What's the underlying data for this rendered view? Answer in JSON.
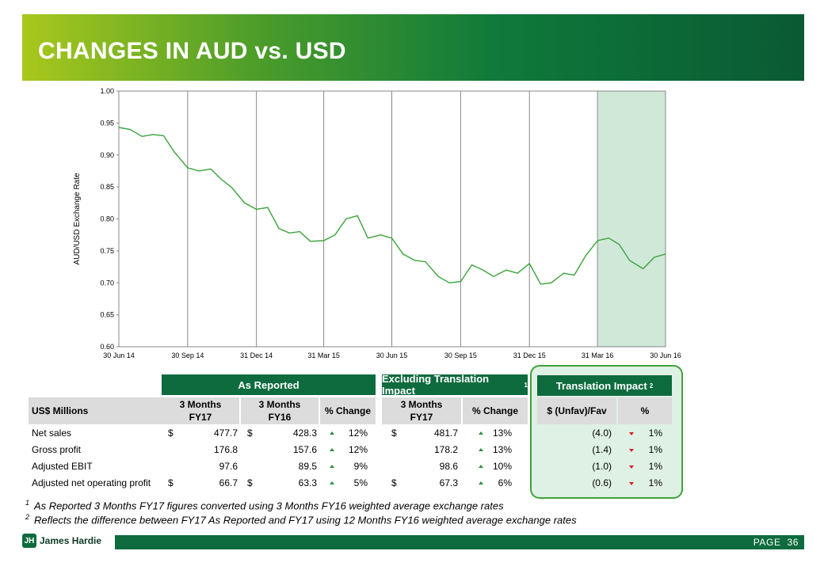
{
  "header": {
    "title": "CHANGES IN AUD vs. USD"
  },
  "chart_data": {
    "type": "line",
    "ylabel": "AUD/USD Exchange Rate",
    "ylim": [
      0.6,
      1.0
    ],
    "yticks": [
      "0.60",
      "0.65",
      "0.70",
      "0.75",
      "0.80",
      "0.85",
      "0.90",
      "0.95",
      "1.00"
    ],
    "xticks": [
      "30 Jun 14",
      "30 Sep 14",
      "31 Dec 14",
      "31 Mar 15",
      "30 Jun 15",
      "30 Sep 15",
      "31 Dec 15",
      "31 Mar 16",
      "30 Jun 16"
    ],
    "highlight_range": [
      "31 Mar 16",
      "30 Jun 16"
    ],
    "line_color": "#3aa33a",
    "highlight_color": "#cfe8d8",
    "series": [
      {
        "x": [
          "2014-06-30",
          "2014-07-15",
          "2014-07-31",
          "2014-08-15",
          "2014-08-29",
          "2014-09-12",
          "2014-09-30",
          "2014-10-15",
          "2014-10-31",
          "2014-11-14",
          "2014-11-28",
          "2014-12-15",
          "2014-12-31",
          "2015-01-15",
          "2015-01-30",
          "2015-02-13",
          "2015-02-27",
          "2015-03-13",
          "2015-03-31",
          "2015-04-15",
          "2015-04-30",
          "2015-05-15",
          "2015-05-29",
          "2015-06-15",
          "2015-06-30",
          "2015-07-15",
          "2015-07-31",
          "2015-08-14",
          "2015-08-31",
          "2015-09-15",
          "2015-09-30",
          "2015-10-15",
          "2015-10-30",
          "2015-11-13",
          "2015-11-30",
          "2015-12-15",
          "2015-12-31",
          "2016-01-15",
          "2016-01-29",
          "2016-02-15",
          "2016-02-29",
          "2016-03-15",
          "2016-03-31",
          "2016-04-15",
          "2016-04-29",
          "2016-05-13",
          "2016-05-31",
          "2016-06-15",
          "2016-06-30"
        ],
        "values": [
          0.943,
          0.94,
          0.929,
          0.932,
          0.93,
          0.905,
          0.88,
          0.875,
          0.878,
          0.862,
          0.849,
          0.825,
          0.815,
          0.818,
          0.785,
          0.778,
          0.78,
          0.765,
          0.766,
          0.775,
          0.8,
          0.805,
          0.77,
          0.775,
          0.77,
          0.745,
          0.735,
          0.733,
          0.71,
          0.7,
          0.702,
          0.728,
          0.72,
          0.71,
          0.72,
          0.715,
          0.73,
          0.698,
          0.7,
          0.715,
          0.712,
          0.742,
          0.766,
          0.77,
          0.76,
          0.735,
          0.722,
          0.74,
          0.745
        ]
      }
    ]
  },
  "table": {
    "section_as_reported": "As Reported",
    "section_excluding": "Excluding Translation Impact",
    "section_excluding_note": "1",
    "section_translation": "Translation Impact",
    "section_translation_note": "2",
    "col_label": "US$ Millions",
    "col_fy17_line1": "3 Months",
    "col_fy17_line2": "FY17",
    "col_fy16_line1": "3 Months",
    "col_fy16_line2": "FY16",
    "col_pct_change": "% Change",
    "col_ex_fy17_line1": "3 Months",
    "col_ex_fy17_line2": "FY17",
    "col_ex_pct_change": "% Change",
    "col_unfav": "$ (Unfav)/Fav",
    "col_pct": "%",
    "rows": [
      {
        "label": "Net sales",
        "cur1": "$",
        "fy17": "477.7",
        "cur2": "$",
        "fy16": "428.3",
        "chg": "12%",
        "cur3": "$",
        "ex_fy17": "481.7",
        "ex_chg": "13%",
        "unfav": "(4.0)",
        "pct": "1%"
      },
      {
        "label": "Gross profit",
        "cur1": "",
        "fy17": "176.8",
        "cur2": "",
        "fy16": "157.6",
        "chg": "12%",
        "cur3": "",
        "ex_fy17": "178.2",
        "ex_chg": "13%",
        "unfav": "(1.4)",
        "pct": "1%"
      },
      {
        "label": "Adjusted EBIT",
        "cur1": "",
        "fy17": "97.6",
        "cur2": "",
        "fy16": "89.5",
        "chg": "9%",
        "cur3": "",
        "ex_fy17": "98.6",
        "ex_chg": "10%",
        "unfav": "(1.0)",
        "pct": "1%"
      },
      {
        "label": "Adjusted net operating profit",
        "cur1": "$",
        "fy17": "66.7",
        "cur2": "$",
        "fy16": "63.3",
        "chg": "5%",
        "cur3": "$",
        "ex_fy17": "67.3",
        "ex_chg": "6%",
        "unfav": "(0.6)",
        "pct": "1%"
      }
    ]
  },
  "footnotes": {
    "note1_mark": "1",
    "note1_text": "As Reported 3 Months FY17 figures converted using 3 Months FY16 weighted average exchange rates",
    "note2_mark": "2",
    "note2_text": "Reflects the difference between FY17 As Reported and FY17 using 12 Months FY16 weighted average exchange rates"
  },
  "footer": {
    "logo_text": "James Hardie",
    "logo_icon": "james-hardie-logo-icon",
    "page_label": "PAGE",
    "page_number": "36"
  }
}
